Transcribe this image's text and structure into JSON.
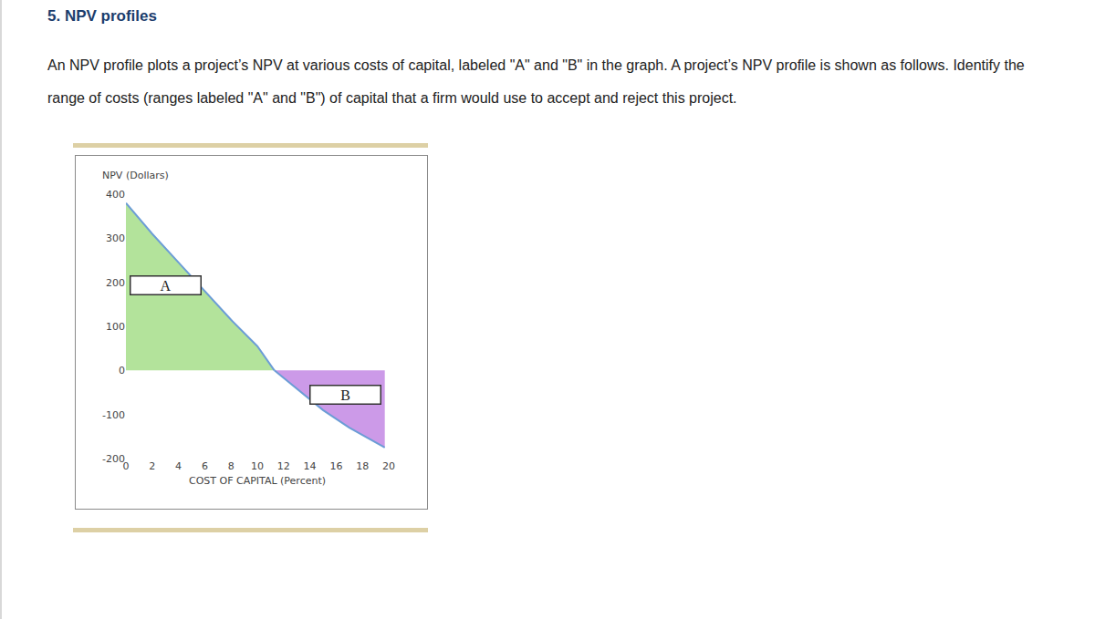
{
  "header": {
    "title": "5. NPV profiles",
    "text": "An NPV profile plots a project’s NPV at various costs of capital, labeled \"A\" and \"B\" in the graph. A project’s NPV profile is shown as follows. Identify the range of costs (ranges labeled \"A\" and \"B\") of capital that a firm would use to accept and reject this project."
  },
  "chart_data": {
    "type": "area",
    "x_label": "COST OF CAPITAL (Percent)",
    "y_label": "NPV (Dollars)",
    "series": [
      {
        "color": "#b3e39b",
        "x": [
          0,
          2,
          4,
          6,
          8,
          10,
          11.3
        ],
        "values": [
          380,
          310,
          245,
          180,
          115,
          55,
          0
        ]
      },
      {
        "color": "#cc9ae8",
        "x": [
          11.3,
          13,
          15,
          17,
          19.7
        ],
        "values": [
          0,
          -42,
          -90,
          -130,
          -175
        ]
      }
    ],
    "xlim": [
      0,
      20
    ],
    "xticks": [
      0,
      2,
      4,
      6,
      8,
      10,
      12,
      14,
      16,
      18,
      20
    ],
    "ylim": [
      -200,
      400
    ],
    "yticks": [
      -200,
      -100,
      0,
      100,
      200,
      300,
      400
    ],
    "grid": false,
    "annotations": [
      {
        "text": "A",
        "x": 3,
        "y": 193
      },
      {
        "text": "B",
        "x": 16.7,
        "y": -55
      }
    ]
  }
}
